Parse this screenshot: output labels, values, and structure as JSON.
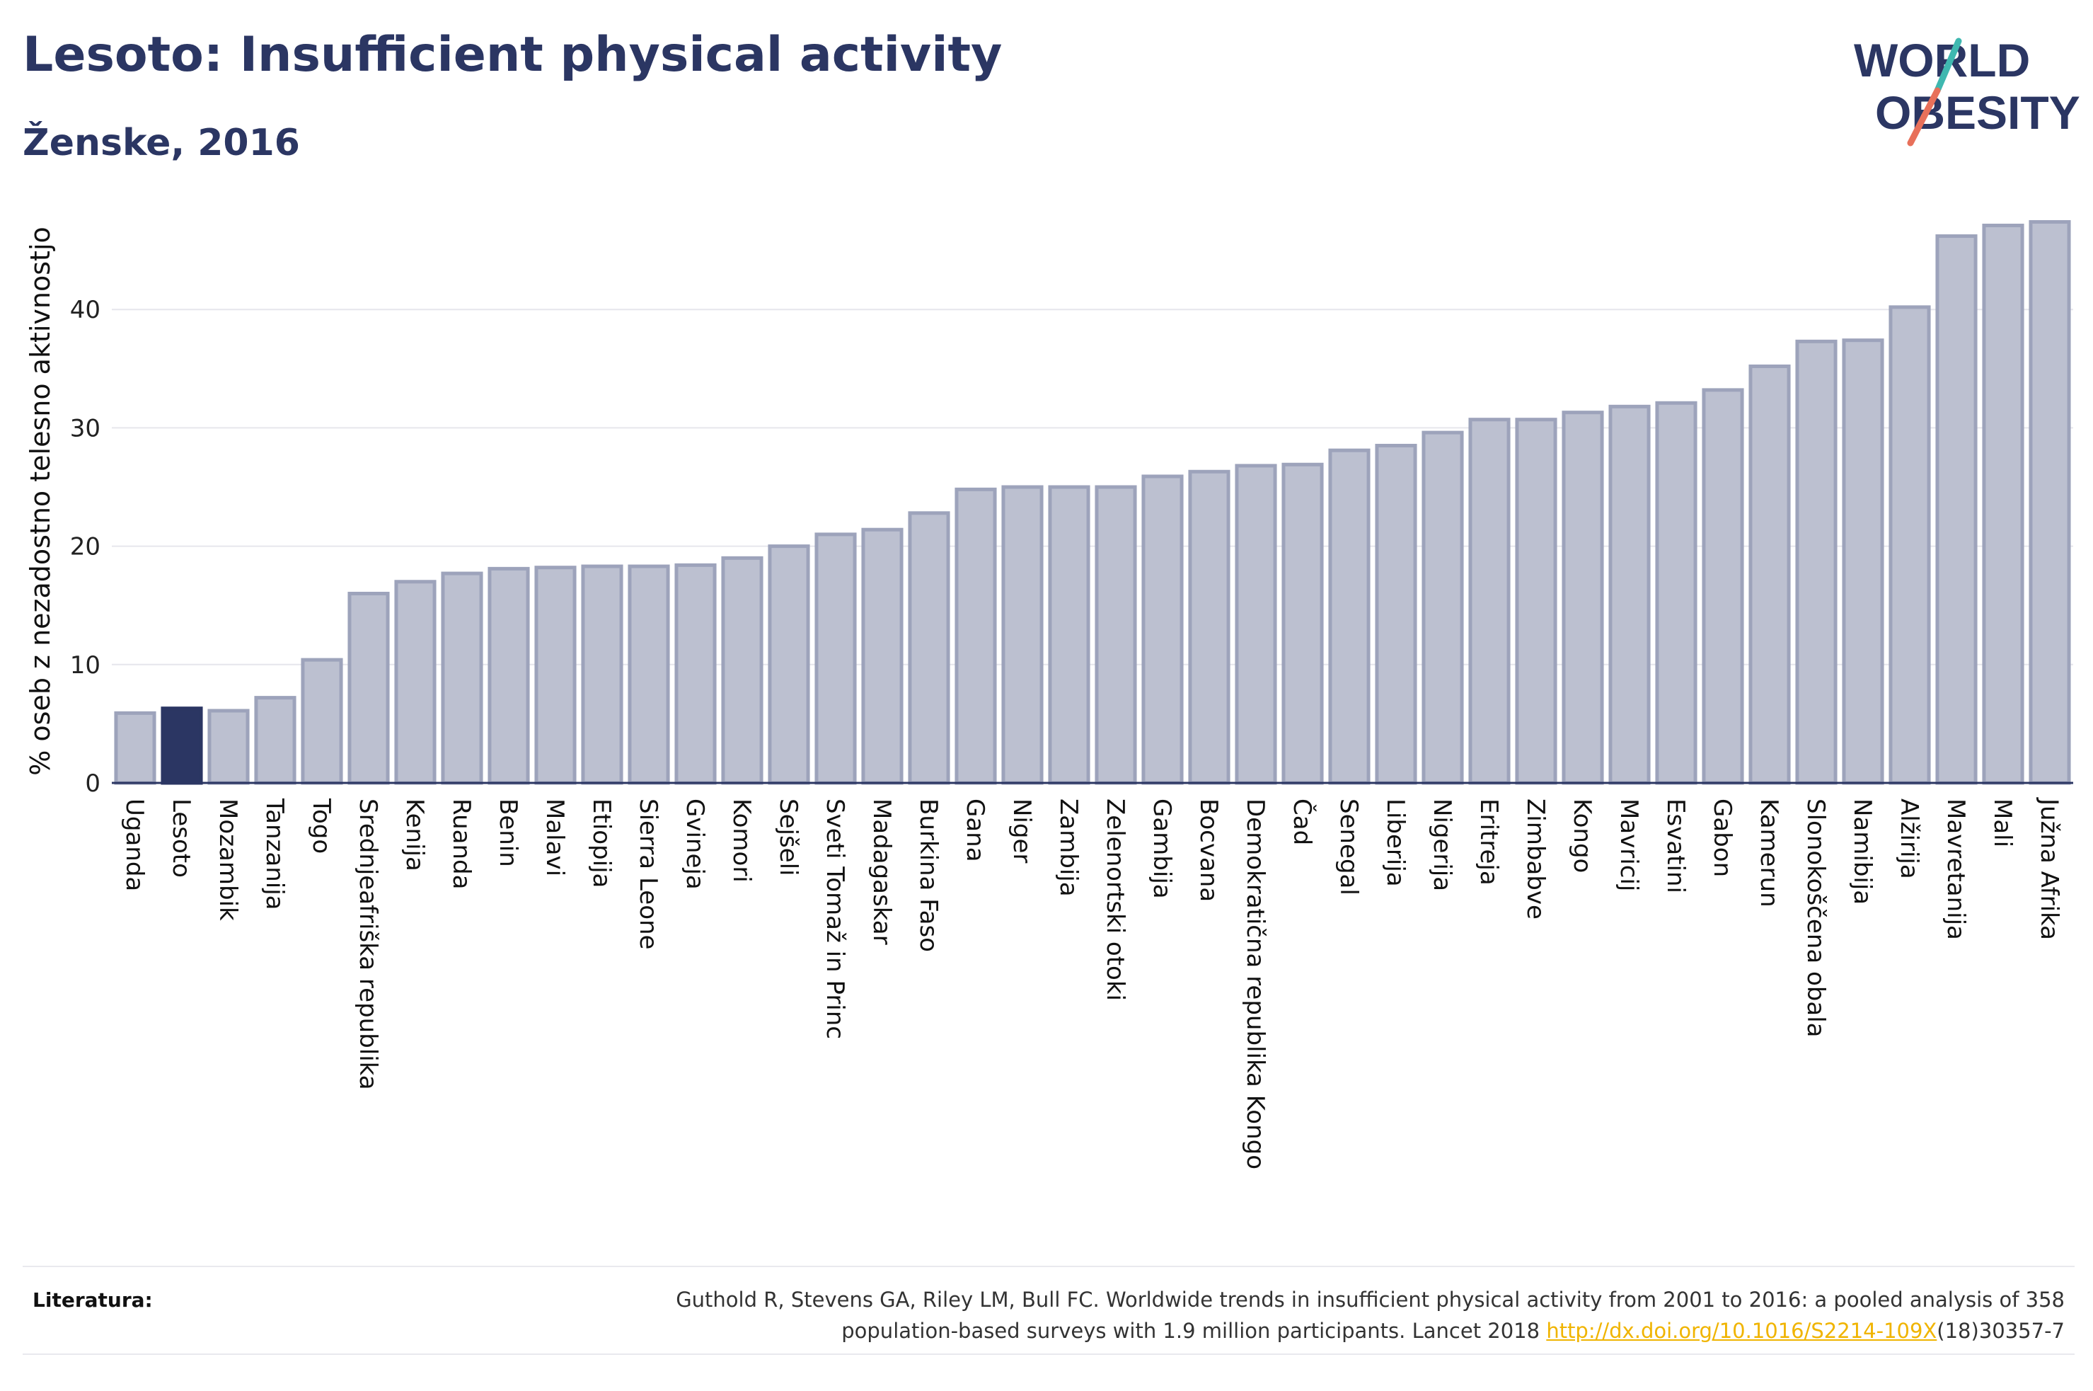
{
  "header": {
    "title": "Lesoto: Insufficient physical activity",
    "subtitle": "Ženske, 2016"
  },
  "logo": {
    "line1": "WORLD",
    "line2": "OBESITY",
    "accent_teal": "#3fb8b0",
    "accent_coral": "#e8705a"
  },
  "colors": {
    "bar": "#bcc0d0",
    "bar_stroke": "#9da3bb",
    "highlight": "#2b3663",
    "text": "#2b3663"
  },
  "chart_data": {
    "type": "bar",
    "ylabel": "% oseb z nezadostno telesno aktivnostjo",
    "ylim": [
      0,
      50
    ],
    "yticks": [
      0,
      10,
      20,
      30,
      40
    ],
    "grid": true,
    "highlight_category": "Lesoto",
    "categories": [
      "Uganda",
      "Lesoto",
      "Mozambik",
      "Tanzanija",
      "Togo",
      "Srednjeafriška republika",
      "Kenija",
      "Ruanda",
      "Benin",
      "Malavi",
      "Etiopija",
      "Sierra Leone",
      "Gvineja",
      "Komori",
      "Sejšeli",
      "Sveti Tomaž in Princ",
      "Madagaskar",
      "Burkina Faso",
      "Gana",
      "Niger",
      "Zambija",
      "Zelenortski otoki",
      "Gambija",
      "Bocvana",
      "Demokratična republika Kongo",
      "Čad",
      "Senegal",
      "Liberija",
      "Nigerija",
      "Eritreja",
      "Zimbabve",
      "Kongo",
      "Mavricij",
      "Esvatini",
      "Gabon",
      "Kamerun",
      "Slonokoščena obala",
      "Namibija",
      "Alžirija",
      "Mavretanija",
      "Mali",
      "Južna Afrika"
    ],
    "values": [
      5.9,
      6.3,
      6.1,
      7.2,
      10.4,
      16.0,
      17.0,
      17.7,
      18.1,
      18.2,
      18.3,
      18.3,
      18.4,
      19.0,
      20.0,
      21.0,
      21.4,
      22.8,
      24.8,
      25.0,
      25.0,
      25.0,
      25.9,
      26.3,
      26.8,
      26.9,
      28.1,
      28.5,
      29.6,
      30.7,
      30.7,
      31.3,
      31.8,
      32.1,
      33.2,
      35.2,
      37.3,
      37.4,
      40.2,
      46.2,
      47.1,
      47.4
    ]
  },
  "references": {
    "label": "Literatura:",
    "line1": "Guthold R, Stevens GA, Riley LM, Bull FC. Worldwide trends in insufficient physical activity from 2001 to 2016: a pooled analysis of 358",
    "line2_pre": "population-based surveys with 1.9 million participants. Lancet 2018 ",
    "link": "http://dx.doi.org/10.1016/S2214-109X",
    "line2_post": "(18)30357-7"
  }
}
